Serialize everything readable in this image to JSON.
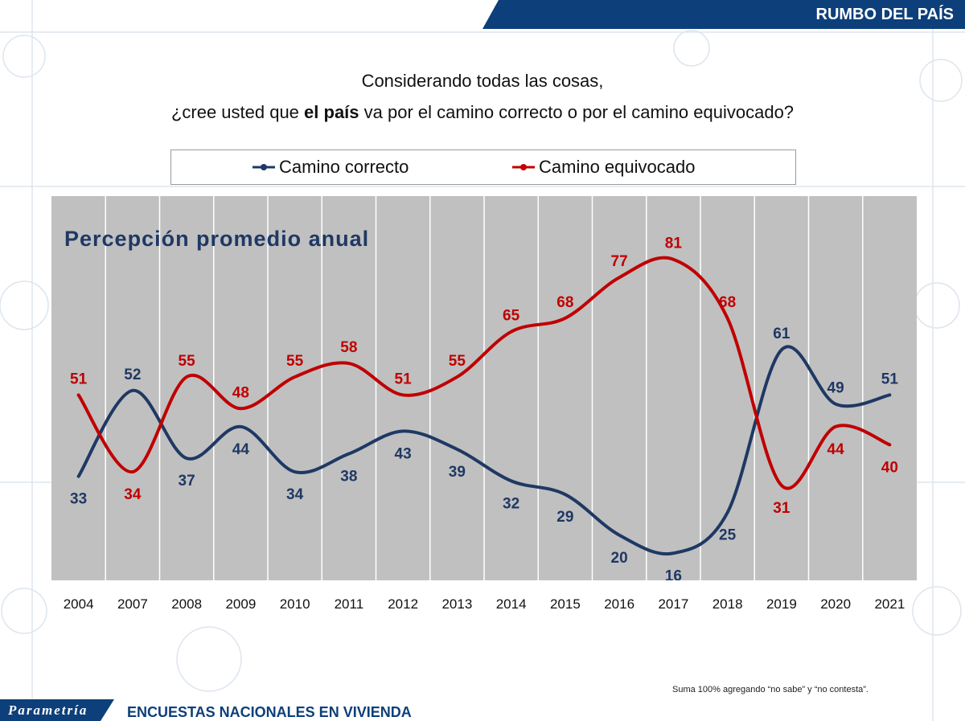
{
  "header": {
    "section_title": "RUMBO DEL PAÍS"
  },
  "question": {
    "line1": "Considerando todas las cosas,",
    "line2_before": "¿cree usted que ",
    "line2_bold": "el país",
    "line2_after": " va por el camino correcto o por el camino equivocado?"
  },
  "legend": {
    "items": [
      {
        "label": "Camino correcto",
        "color": "#1f3864"
      },
      {
        "label": "Camino equivocado",
        "color": "#c00000"
      }
    ]
  },
  "chart_data": {
    "type": "line",
    "title": "Percepción promedio anual",
    "categories": [
      "2004",
      "2007",
      "2008",
      "2009",
      "2010",
      "2011",
      "2012",
      "2013",
      "2014",
      "2015",
      "2016",
      "2017",
      "2018",
      "2019",
      "2020",
      "2021"
    ],
    "series": [
      {
        "name": "Camino correcto",
        "color": "#1f3864",
        "values": [
          33,
          52,
          37,
          44,
          34,
          38,
          43,
          39,
          32,
          29,
          20,
          16,
          25,
          61,
          49,
          51
        ]
      },
      {
        "name": "Camino equivocado",
        "color": "#c00000",
        "values": [
          51,
          34,
          55,
          48,
          55,
          58,
          51,
          55,
          65,
          68,
          77,
          81,
          68,
          31,
          44,
          40
        ]
      }
    ],
    "ylim": [
      10,
      95
    ],
    "grid": "vertical bands",
    "legend_position": "top",
    "background": "#c0c0c0"
  },
  "footnote": "Suma 100% agregando “no sabe” y “no contesta”.",
  "footer": {
    "brand": "Parametría",
    "label": "ENCUESTAS NACIONALES EN VIVIENDA"
  }
}
